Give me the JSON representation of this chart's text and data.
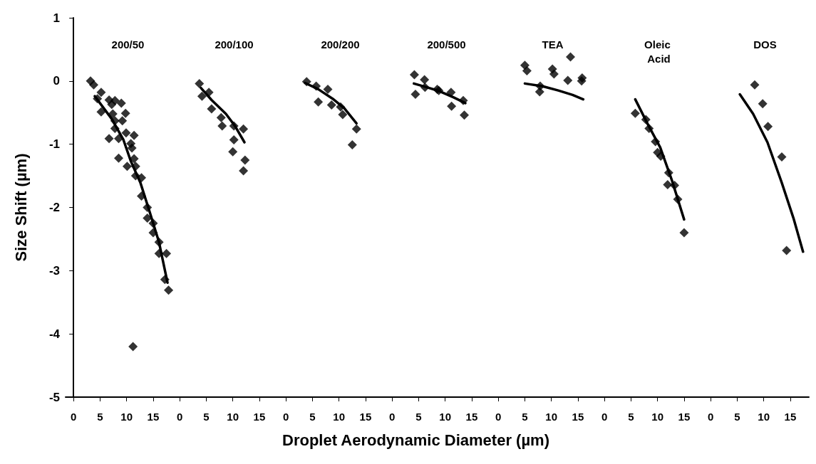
{
  "chart_data": [
    {
      "type": "scatter",
      "title": "200/50",
      "ylabel": "Size Shift (µm)",
      "xlim": [
        -1.5,
        18.5
      ],
      "xticks": [
        0,
        5,
        10,
        15
      ],
      "ylim": [
        -5,
        1
      ],
      "yticks": [
        -5,
        -4,
        -3,
        -2,
        -1,
        0,
        1
      ],
      "series": [
        {
          "type": "scatter",
          "color": "#000000",
          "marker": "diamond",
          "x": [
            3.2,
            3.8,
            5.2,
            4.5,
            6.7,
            7.8,
            9.0,
            7.2,
            5.2,
            7.4,
            9.8,
            9.2,
            7.8,
            7.8,
            9.9,
            11.4,
            6.7,
            8.5,
            10.8,
            11.0,
            8.5,
            11.4,
            11.7,
            10.1,
            11.7,
            12.8,
            12.8,
            13.9,
            13.9,
            15.0,
            15.0,
            16.1,
            16.1,
            17.5,
            17.2,
            17.9,
            11.2
          ],
          "values": [
            0.0,
            -0.06,
            -0.18,
            -0.28,
            -0.3,
            -0.31,
            -0.35,
            -0.37,
            -0.49,
            -0.52,
            -0.51,
            -0.63,
            -0.63,
            -0.75,
            -0.82,
            -0.86,
            -0.91,
            -0.91,
            -0.99,
            -1.06,
            -1.22,
            -1.23,
            -1.35,
            -1.35,
            -1.5,
            -1.53,
            -1.82,
            -2.0,
            -2.17,
            -2.25,
            -2.4,
            -2.55,
            -2.73,
            -2.73,
            -3.14,
            -3.31,
            -4.2
          ]
        },
        {
          "type": "line",
          "color": "#000000",
          "marker": "none",
          "x": [
            4.0,
            7.2,
            9.4,
            10.8,
            12.6,
            14.3,
            16.1,
            17.7
          ],
          "values": [
            -0.24,
            -0.6,
            -0.93,
            -1.27,
            -1.61,
            -2.06,
            -2.55,
            -3.19
          ]
        }
      ]
    },
    {
      "type": "scatter",
      "title": "200/100",
      "xlim": [
        -1.5,
        18.5
      ],
      "xticks": [
        0,
        5,
        10,
        15
      ],
      "ylim": [
        -5,
        1
      ],
      "yticks": [
        -5,
        -4,
        -3,
        -2,
        -1,
        0,
        1
      ],
      "tick_labels": "x",
      "series": [
        {
          "type": "scatter",
          "color": "#000000",
          "marker": "diamond",
          "x": [
            3.7,
            4.2,
            5.5,
            6.0,
            7.8,
            8.0,
            10.2,
            12.0,
            10.2,
            10.0,
            12.3,
            12.0
          ],
          "values": [
            -0.04,
            -0.24,
            -0.18,
            -0.44,
            -0.58,
            -0.71,
            -0.71,
            -0.76,
            -0.93,
            -1.12,
            -1.25,
            -1.42
          ]
        },
        {
          "type": "line",
          "color": "#000000",
          "marker": "none",
          "x": [
            4.0,
            6.0,
            8.7,
            10.4,
            12.2
          ],
          "values": [
            -0.11,
            -0.3,
            -0.52,
            -0.71,
            -0.97
          ]
        }
      ]
    },
    {
      "type": "scatter",
      "title": "200/200",
      "xlim": [
        -1.5,
        18.5
      ],
      "xticks": [
        0,
        5,
        10,
        15
      ],
      "ylim": [
        -5,
        1
      ],
      "yticks": [
        -5,
        -4,
        -3,
        -2,
        -1,
        0,
        1
      ],
      "tick_labels": "x",
      "series": [
        {
          "type": "scatter",
          "color": "#000000",
          "marker": "diamond",
          "x": [
            3.9,
            5.7,
            7.9,
            6.1,
            8.6,
            10.3,
            10.7,
            13.3,
            12.5
          ],
          "values": [
            -0.01,
            -0.08,
            -0.13,
            -0.33,
            -0.38,
            -0.41,
            -0.53,
            -0.76,
            -1.01
          ]
        },
        {
          "type": "line",
          "color": "#000000",
          "marker": "none",
          "x": [
            3.6,
            6.1,
            8.8,
            11.0,
            13.3
          ],
          "values": [
            -0.03,
            -0.13,
            -0.28,
            -0.43,
            -0.67
          ]
        }
      ]
    },
    {
      "type": "scatter",
      "title": "200/500",
      "xlabel": "Droplet Aerodynamic Diameter (µm)",
      "xlim": [
        -1.5,
        18.5
      ],
      "xticks": [
        0,
        5,
        10,
        15
      ],
      "ylim": [
        -5,
        1
      ],
      "yticks": [
        -5,
        -4,
        -3,
        -2,
        -1,
        0,
        1
      ],
      "tick_labels": "x",
      "series": [
        {
          "type": "scatter",
          "color": "#000000",
          "marker": "diamond",
          "x": [
            4.2,
            4.4,
            6.1,
            6.2,
            8.5,
            8.8,
            11.1,
            13.4,
            11.2,
            13.6
          ],
          "values": [
            0.1,
            -0.21,
            0.02,
            -0.1,
            -0.13,
            -0.15,
            -0.18,
            -0.31,
            -0.4,
            -0.54
          ]
        },
        {
          "type": "line",
          "color": "#000000",
          "marker": "none",
          "x": [
            4.1,
            6.2,
            8.9,
            11.6,
            13.8
          ],
          "values": [
            -0.04,
            -0.09,
            -0.16,
            -0.26,
            -0.35
          ]
        }
      ]
    },
    {
      "type": "scatter",
      "title": "TEA",
      "xlim": [
        -1.5,
        18.5
      ],
      "xticks": [
        0,
        5,
        10,
        15
      ],
      "ylim": [
        -5,
        1
      ],
      "yticks": [
        -5,
        -4,
        -3,
        -2,
        -1,
        0,
        1
      ],
      "tick_labels": "x",
      "series": [
        {
          "type": "scatter",
          "color": "#000000",
          "marker": "diamond",
          "x": [
            5.0,
            5.4,
            10.2,
            10.5,
            13.6,
            13.1,
            15.8,
            15.7,
            7.9,
            7.8
          ],
          "values": [
            0.25,
            0.16,
            0.19,
            0.11,
            0.38,
            0.01,
            0.05,
            0.0,
            -0.08,
            -0.17
          ]
        },
        {
          "type": "line",
          "color": "#000000",
          "marker": "none",
          "x": [
            5.0,
            8.2,
            11.3,
            14.0,
            16.0
          ],
          "values": [
            -0.04,
            -0.08,
            -0.15,
            -0.22,
            -0.29
          ]
        }
      ]
    },
    {
      "type": "scatter",
      "title": "Oleic Acid",
      "xlim": [
        -1.5,
        18.5
      ],
      "xticks": [
        0,
        5,
        10,
        15
      ],
      "ylim": [
        -5,
        1
      ],
      "yticks": [
        -5,
        -4,
        -3,
        -2,
        -1,
        0,
        1
      ],
      "tick_labels": "x",
      "series": [
        {
          "type": "scatter",
          "color": "#000000",
          "marker": "diamond",
          "x": [
            5.8,
            7.8,
            8.4,
            9.6,
            10.0,
            10.6,
            12.1,
            11.9,
            13.2,
            13.8,
            15.0
          ],
          "values": [
            -0.51,
            -0.61,
            -0.75,
            -0.96,
            -1.13,
            -1.19,
            -1.45,
            -1.64,
            -1.65,
            -1.87,
            -2.4
          ]
        },
        {
          "type": "line",
          "color": "#000000",
          "marker": "none",
          "x": [
            5.8,
            8.2,
            10.5,
            12.7,
            15.0
          ],
          "values": [
            -0.29,
            -0.69,
            -1.05,
            -1.57,
            -2.19
          ]
        }
      ]
    },
    {
      "type": "scatter",
      "title": "DOS",
      "xlim": [
        -1.5,
        18.5
      ],
      "xticks": [
        0,
        5,
        10,
        15
      ],
      "ylim": [
        -5,
        1
      ],
      "yticks": [
        -5,
        -4,
        -3,
        -2,
        -1,
        0,
        1
      ],
      "tick_labels": "x",
      "series": [
        {
          "type": "scatter",
          "color": "#000000",
          "marker": "diamond",
          "x": [
            8.3,
            9.8,
            10.8,
            13.4,
            14.3
          ],
          "values": [
            -0.06,
            -0.36,
            -0.72,
            -1.2,
            -2.68
          ]
        },
        {
          "type": "line",
          "color": "#000000",
          "marker": "none",
          "x": [
            5.5,
            8.0,
            10.7,
            13.4,
            15.6,
            17.4
          ],
          "values": [
            -0.21,
            -0.52,
            -0.97,
            -1.61,
            -2.17,
            -2.7
          ]
        }
      ]
    }
  ]
}
